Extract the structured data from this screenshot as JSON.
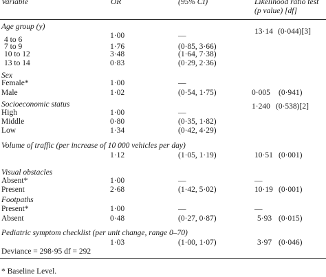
{
  "header": {
    "variable": "Variable",
    "or": "OR",
    "ci": "(95% CI)",
    "lr_line1": "Likelihood ratio test",
    "lr_line2": "(p value) [df]"
  },
  "age": {
    "heading": "Age group (y)",
    "lr": "13·14",
    "p": "(0·044)[3]",
    "rows": [
      {
        "label": "4 to 6",
        "or": "1·00",
        "ci": "—"
      },
      {
        "label": "7 to 9",
        "or": "1·76",
        "ci": "(0·85, 3·66)"
      },
      {
        "label": "10 to 12",
        "or": "3·48",
        "ci": "(1·64, 7·38)"
      },
      {
        "label": "13 to 14",
        "or": "0·83",
        "ci": "(0·29, 2·36)"
      }
    ]
  },
  "sex": {
    "heading": "Sex",
    "rows": [
      {
        "label": "Female*",
        "or": "1·00",
        "ci": "—"
      },
      {
        "label": "Male",
        "or": "1·02",
        "ci": "(0·54, 1·75)",
        "lr": "0·005",
        "p": "(0·941)"
      }
    ]
  },
  "ses": {
    "heading": "Socioeconomic status",
    "lr": "1·240",
    "p": "(0·538)[2]",
    "rows": [
      {
        "label": "High",
        "or": "1·00",
        "ci": "—"
      },
      {
        "label": "Middle",
        "or": "0·80",
        "ci": "(0·35, 1·82)"
      },
      {
        "label": "Low",
        "or": "1·34",
        "ci": "(0·42, 4·29)"
      }
    ]
  },
  "traffic": {
    "heading": "Volume of traffic (per increase of 10 000 vehicles per day)",
    "or": "1·12",
    "ci": "(1·05, 1·19)",
    "lr": "10·51",
    "p": "(0·001)"
  },
  "visual": {
    "heading": "Visual obstacles",
    "rows": [
      {
        "label": "Absent*",
        "or": "1·00",
        "ci": "—",
        "lr": "—"
      },
      {
        "label": "Present",
        "or": "2·68",
        "ci": "(1·42, 5·02)",
        "lr": "10·19",
        "p": "(0·001)"
      }
    ]
  },
  "foot": {
    "heading": "Footpaths",
    "rows": [
      {
        "label": "Present*",
        "or": "1·00",
        "ci": "—",
        "lr": "—"
      },
      {
        "label": "Absent",
        "or": "0·48",
        "ci": "(0·27, 0·87)",
        "lr": "5·93",
        "p": "(0·015)"
      }
    ]
  },
  "psc": {
    "heading": "Pediatric symptom checklist (per unit change, range 0–70)",
    "or": "1·03",
    "ci": "(1·00, 1·07)",
    "lr": "3·97",
    "p": "(0·046)"
  },
  "deviance": "Deviance = 298·95 df = 292",
  "footnote": "* Baseline Level."
}
